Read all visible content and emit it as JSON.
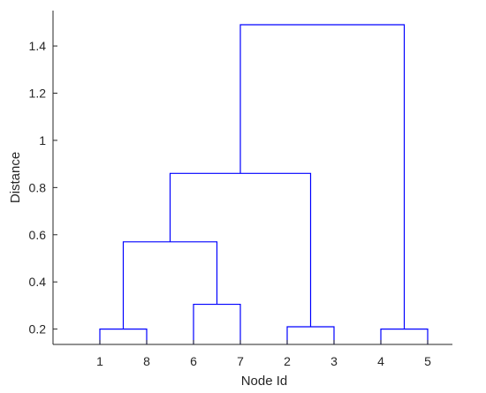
{
  "chart_data": {
    "type": "dendrogram",
    "xlabel": "Node Id",
    "ylabel": "Distance",
    "leaf_order": [
      "1",
      "8",
      "6",
      "7",
      "2",
      "3",
      "4",
      "5"
    ],
    "ylim": [
      0.135,
      1.55
    ],
    "yticks": [
      0.2,
      0.4,
      0.6,
      0.8,
      1,
      1.2,
      1.4
    ],
    "ytick_labels": [
      "0.2",
      "0.4",
      "0.6",
      "0.8",
      "1",
      "1.2",
      "1.4"
    ],
    "line_color": "#0000ff",
    "grid": false,
    "merges": [
      {
        "left": "1",
        "right": "8",
        "height": 0.2
      },
      {
        "left": "6",
        "right": "7",
        "height": 0.305
      },
      {
        "left": "2",
        "right": "3",
        "height": 0.21
      },
      {
        "left": "4",
        "right": "5",
        "height": 0.2
      },
      {
        "left": "1+8",
        "right": "6+7",
        "height": 0.57
      },
      {
        "left": "1+8+6+7",
        "right": "2+3",
        "height": 0.86
      },
      {
        "left": "1+8+6+7+2+3",
        "right": "4+5",
        "height": 1.49
      }
    ]
  }
}
